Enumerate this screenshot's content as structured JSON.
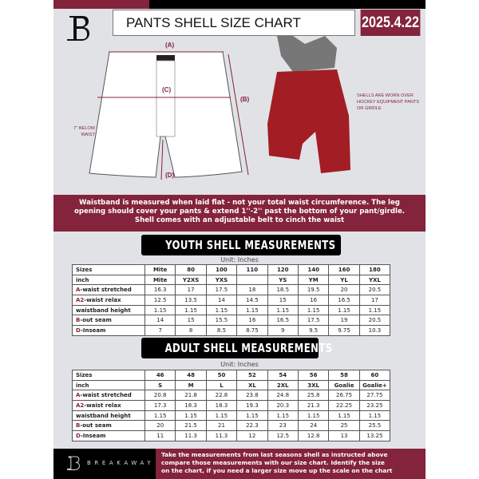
{
  "header": {
    "title": "PANTS SHELL SIZE CHART",
    "date": "2025.4.22",
    "brand_color": "#84233c"
  },
  "diagram": {
    "label_a": "(A)",
    "label_b": "(B)",
    "label_c": "(C)",
    "label_d": "(D)",
    "below_waist": "7'' BELOW WAIST",
    "note": "SHELLS ARE WORN OVER HOCKEY EQUIPMENT PANTS OR GIRDLE"
  },
  "info": {
    "line1": "Waistband is measured when laid flat - not your total waist circumference. The leg",
    "line2": "opening should cover your pants & extend 1''-2'' past the bottom of your pant/girdle.",
    "line3": "Shell comes with an adjustable belt to cinch the waist"
  },
  "youth": {
    "title": "YOUTH SHELL MEASUREMENTS",
    "unit": "Unit: Inches",
    "rows": [
      {
        "p": "",
        "s": "Sizes",
        "v": [
          "Mite",
          "80",
          "100",
          "110",
          "120",
          "140",
          "160",
          "180"
        ]
      },
      {
        "p": "",
        "s": "inch",
        "v": [
          "Mite",
          "Y2XS",
          "YXS",
          "",
          "YS",
          "YM",
          "YL",
          "YXL"
        ]
      },
      {
        "p": "A",
        "s": "-waist stretched",
        "v": [
          "16.3",
          "17",
          "17.5",
          "18",
          "18.5",
          "19.5",
          "20",
          "20.5"
        ]
      },
      {
        "p": "A2",
        "s": "-waist relax",
        "v": [
          "12.5",
          "13.5",
          "14",
          "14.5",
          "15",
          "16",
          "16.5",
          "17"
        ]
      },
      {
        "p": "",
        "s": "waistband height",
        "v": [
          "1.15",
          "1.15",
          "1.15",
          "1.15",
          "1.15",
          "1.15",
          "1.15",
          "1.15"
        ]
      },
      {
        "p": "B",
        "s": "-out seam",
        "v": [
          "14",
          "15",
          "15.5",
          "16",
          "16.5",
          "17.5",
          "19",
          "20.5"
        ]
      },
      {
        "p": "D",
        "s": "-Inseam",
        "v": [
          "7",
          "8",
          "8.5",
          "8.75",
          "9",
          "9.5",
          "9.75",
          "10.3"
        ]
      }
    ]
  },
  "adult": {
    "title": "ADULT SHELL MEASUREMENTS",
    "unit": "Unit: Inches",
    "rows": [
      {
        "p": "",
        "s": "Sizes",
        "v": [
          "46",
          "48",
          "50",
          "52",
          "54",
          "56",
          "58",
          "60"
        ]
      },
      {
        "p": "",
        "s": "inch",
        "v": [
          "S",
          "M",
          "L",
          "XL",
          "2XL",
          "3XL",
          "Goalie",
          "Goalie+"
        ]
      },
      {
        "p": "A",
        "s": "-waist stretched",
        "v": [
          "20.8",
          "21.8",
          "22.8",
          "23.8",
          "24.8",
          "25.8",
          "26.75",
          "27.75"
        ]
      },
      {
        "p": "A2",
        "s": "-waist relax",
        "v": [
          "17.3",
          "18.3",
          "18.3",
          "19.3",
          "20.3",
          "21.3",
          "22.25",
          "23.25"
        ]
      },
      {
        "p": "",
        "s": "waistband height",
        "v": [
          "1.15",
          "1.15",
          "1.15",
          "1.15",
          "1.15",
          "1.15",
          "1.15",
          "1.15"
        ]
      },
      {
        "p": "B",
        "s": "-out seam",
        "v": [
          "20",
          "21.5",
          "21",
          "22.3",
          "23",
          "24",
          "25",
          "25.5"
        ]
      },
      {
        "p": "D",
        "s": "-Inseam",
        "v": [
          "11",
          "11.3",
          "11.3",
          "12",
          "12.5",
          "12.8",
          "13",
          "13.25"
        ]
      }
    ]
  },
  "footer": {
    "brand": "BREAKAWAY",
    "line1": "Take the measurements from last seasons shell as instructed above",
    "line2": "compare those measurements  with our size chart. Identify the size",
    "line3": "on the chart, if you need a larger size move up the scale on the chart"
  }
}
